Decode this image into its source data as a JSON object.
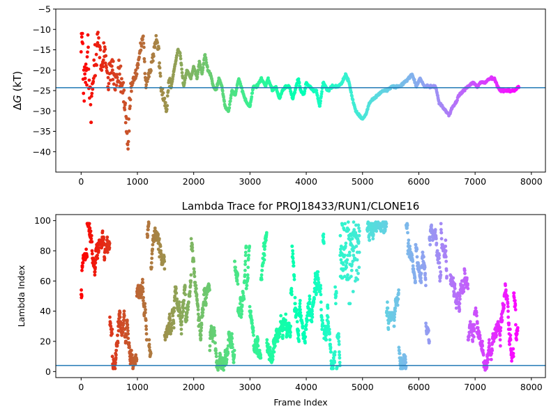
{
  "chart_data": [
    {
      "type": "scatter",
      "title": "",
      "xlabel": "",
      "ylabel": "ΔG (kT)",
      "ylabel_symbol": "Δ",
      "ylabel_var": "G",
      "ylabel_unit": " (kT)",
      "xlim": [
        -450,
        8250
      ],
      "ylim": [
        -45,
        -5
      ],
      "xticks": [
        0,
        1000,
        2000,
        3000,
        4000,
        5000,
        6000,
        7000,
        8000
      ],
      "yticks": [
        -40,
        -35,
        -30,
        -25,
        -20,
        -15,
        -10,
        -5
      ],
      "hline": {
        "y": -24.3,
        "color": "#1f77b4"
      },
      "colormap": "rainbow",
      "color_by": "frame_index",
      "n_frames": 7800,
      "trace_segments": [
        [
          0,
          -10
        ],
        [
          60,
          -25
        ],
        [
          120,
          -18
        ],
        [
          180,
          -32
        ],
        [
          240,
          -15
        ],
        [
          300,
          -12
        ],
        [
          360,
          -20
        ],
        [
          420,
          -14
        ],
        [
          480,
          -24
        ],
        [
          540,
          -18
        ],
        [
          600,
          -23
        ],
        [
          680,
          -21
        ],
        [
          760,
          -26
        ],
        [
          830,
          -40
        ],
        [
          880,
          -25
        ],
        [
          940,
          -22
        ],
        [
          1000,
          -20
        ],
        [
          1050,
          -15
        ],
        [
          1100,
          -11
        ],
        [
          1150,
          -24
        ],
        [
          1200,
          -22
        ],
        [
          1250,
          -18
        ],
        [
          1300,
          -15
        ],
        [
          1340,
          -12
        ],
        [
          1380,
          -16
        ],
        [
          1420,
          -24
        ],
        [
          1480,
          -27
        ],
        [
          1520,
          -30
        ],
        [
          1560,
          -22
        ],
        [
          1600,
          -24
        ],
        [
          1650,
          -20
        ],
        [
          1720,
          -15
        ],
        [
          1760,
          -16
        ],
        [
          1820,
          -24
        ],
        [
          1880,
          -20
        ],
        [
          1950,
          -22
        ],
        [
          2000,
          -19
        ],
        [
          2060,
          -22
        ],
        [
          2100,
          -18
        ],
        [
          2150,
          -21
        ],
        [
          2200,
          -16
        ],
        [
          2250,
          -20
        ],
        [
          2300,
          -21
        ],
        [
          2350,
          -24
        ],
        [
          2400,
          -25
        ],
        [
          2450,
          -22
        ],
        [
          2500,
          -24
        ],
        [
          2560,
          -29
        ],
        [
          2620,
          -30
        ],
        [
          2680,
          -25
        ],
        [
          2740,
          -26
        ],
        [
          2800,
          -22
        ],
        [
          2860,
          -25
        ],
        [
          2940,
          -28
        ],
        [
          3000,
          -29
        ],
        [
          3060,
          -24
        ],
        [
          3120,
          -24
        ],
        [
          3200,
          -22
        ],
        [
          3280,
          -24
        ],
        [
          3320,
          -22
        ],
        [
          3400,
          -25
        ],
        [
          3460,
          -24
        ],
        [
          3520,
          -27
        ],
        [
          3580,
          -25
        ],
        [
          3640,
          -24
        ],
        [
          3700,
          -24
        ],
        [
          3760,
          -27
        ],
        [
          3820,
          -24
        ],
        [
          3860,
          -22
        ],
        [
          3900,
          -25
        ],
        [
          3960,
          -26
        ],
        [
          4000,
          -23
        ],
        [
          4060,
          -24
        ],
        [
          4120,
          -25
        ],
        [
          4180,
          -25
        ],
        [
          4240,
          -29
        ],
        [
          4300,
          -23
        ],
        [
          4380,
          -25
        ],
        [
          4460,
          -24
        ],
        [
          4560,
          -24
        ],
        [
          4640,
          -23
        ],
        [
          4700,
          -21
        ],
        [
          4760,
          -23
        ],
        [
          4820,
          -27
        ],
        [
          4880,
          -30
        ],
        [
          4940,
          -31
        ],
        [
          5000,
          -32
        ],
        [
          5060,
          -31
        ],
        [
          5120,
          -28
        ],
        [
          5200,
          -27
        ],
        [
          5280,
          -26
        ],
        [
          5360,
          -25
        ],
        [
          5440,
          -25
        ],
        [
          5520,
          -24
        ],
        [
          5600,
          -24
        ],
        [
          5680,
          -24
        ],
        [
          5740,
          -23
        ],
        [
          5820,
          -22
        ],
        [
          5880,
          -21
        ],
        [
          5960,
          -24
        ],
        [
          6020,
          -22
        ],
        [
          6100,
          -24
        ],
        [
          6160,
          -24
        ],
        [
          6240,
          -24
        ],
        [
          6300,
          -24
        ],
        [
          6360,
          -28
        ],
        [
          6420,
          -29
        ],
        [
          6480,
          -30
        ],
        [
          6540,
          -31
        ],
        [
          6600,
          -29
        ],
        [
          6660,
          -28
        ],
        [
          6720,
          -26
        ],
        [
          6800,
          -25
        ],
        [
          6880,
          -24
        ],
        [
          6960,
          -23
        ],
        [
          7040,
          -24
        ],
        [
          7100,
          -23
        ],
        [
          7180,
          -23
        ],
        [
          7260,
          -22
        ],
        [
          7340,
          -22
        ],
        [
          7400,
          -24
        ],
        [
          7460,
          -25
        ],
        [
          7540,
          -25
        ],
        [
          7620,
          -25
        ],
        [
          7700,
          -25
        ],
        [
          7780,
          -24
        ]
      ]
    },
    {
      "type": "scatter",
      "title": "Lambda Trace for PROJ18433/RUN1/CLONE16",
      "xlabel": "Frame Index",
      "ylabel": "Lambda Index",
      "xlim": [
        -450,
        8250
      ],
      "ylim": [
        -4,
        104
      ],
      "xticks": [
        0,
        1000,
        2000,
        3000,
        4000,
        5000,
        6000,
        7000,
        8000
      ],
      "yticks": [
        0,
        20,
        40,
        60,
        80,
        100
      ],
      "hline": {
        "y": 4,
        "color": "#1f77b4"
      },
      "colormap": "rainbow",
      "color_by": "frame_index",
      "n_frames": 7800,
      "lambda_min": 0,
      "lambda_max": 99,
      "high_density_band": {
        "x_range": [
          4600,
          5000
        ],
        "y_range": [
          60,
          99
        ]
      },
      "gaps": [
        [
          4950,
          5080
        ],
        [
          6500,
          6560
        ]
      ]
    }
  ]
}
